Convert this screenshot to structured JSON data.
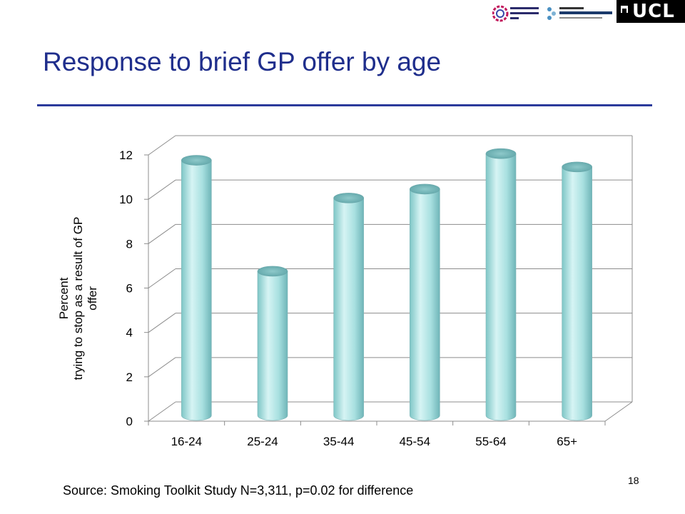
{
  "slide": {
    "title": "Response to brief GP offer by age",
    "source": "Source: Smoking Toolkit Study N=3,311, p=0.02 for difference",
    "page_number": "18"
  },
  "logos": {
    "cancer_research": "CANCER RESEARCH UK",
    "tobacco_centre": "UK Centre for Tobacco Control Studies",
    "ucl": "UCL"
  },
  "colors": {
    "title": "#1f2e8c",
    "rule": "#2b3a9b",
    "bar": "#a8e0e0"
  },
  "chart_data": {
    "type": "bar",
    "title": "",
    "ylabel_lines": [
      "Percent",
      "trying to stop as a result of GP",
      "offer"
    ],
    "xlabel": "",
    "categories": [
      "16-24",
      "25-24",
      "35-44",
      "45-54",
      "55-64",
      "65+"
    ],
    "values": [
      11.5,
      6.5,
      9.8,
      10.2,
      11.8,
      11.2
    ],
    "ylim": [
      0,
      12
    ],
    "yticks": [
      "0",
      "2",
      "4",
      "6",
      "8",
      "10",
      "12"
    ],
    "grid": true,
    "style": "3d-cylinder"
  }
}
